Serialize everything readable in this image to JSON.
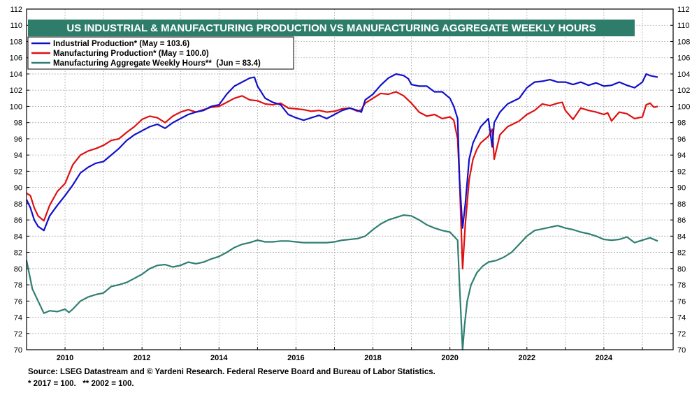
{
  "colors": {
    "title_bg": "#2e7d6b",
    "industrial": "#1010cc",
    "manufacturing": "#e01010",
    "hours": "#2f7f72",
    "grid": "#b0b0b0"
  },
  "footnotes": {
    "source": "Source: LSEG Datastream and © Yardeni Research. Federal Reserve Board and Bureau of Labor Statistics.",
    "notes": "* 2017 = 100.   ** 2002 = 100."
  },
  "chart_data": {
    "type": "line",
    "title": "US INDUSTRIAL & MANUFACTURING PRODUCTION VS MANUFACTURING AGGREGATE WEEKLY HOURS",
    "ylim": [
      70,
      112
    ],
    "y_ticks": [
      70,
      72,
      74,
      76,
      78,
      80,
      82,
      84,
      86,
      88,
      90,
      92,
      94,
      96,
      98,
      100,
      102,
      104,
      106,
      108,
      110,
      112
    ],
    "y_ticks_right": [
      70,
      72,
      74,
      76,
      78,
      80,
      82,
      84,
      86,
      88,
      90,
      92,
      94,
      96,
      98,
      100,
      102,
      104,
      106,
      108,
      110,
      112
    ],
    "xlim": [
      2009.0,
      2025.8
    ],
    "x_ticks": [
      2010,
      2012,
      2014,
      2016,
      2018,
      2020,
      2022,
      2024
    ],
    "grid": true,
    "legend": "top-left",
    "series": [
      {
        "name": "Industrial Production* (May = 103.6)",
        "key": "industrial",
        "x": [
          2009.0,
          2009.1,
          2009.2,
          2009.3,
          2009.45,
          2009.6,
          2009.8,
          2010.0,
          2010.2,
          2010.4,
          2010.6,
          2010.8,
          2011.0,
          2011.2,
          2011.4,
          2011.6,
          2011.8,
          2012.0,
          2012.2,
          2012.4,
          2012.6,
          2012.8,
          2013.0,
          2013.2,
          2013.4,
          2013.6,
          2013.8,
          2014.0,
          2014.2,
          2014.4,
          2014.6,
          2014.8,
          2014.92,
          2015.0,
          2015.2,
          2015.4,
          2015.6,
          2015.8,
          2016.0,
          2016.2,
          2016.4,
          2016.6,
          2016.8,
          2017.0,
          2017.2,
          2017.4,
          2017.6,
          2017.7,
          2017.8,
          2018.0,
          2018.2,
          2018.4,
          2018.6,
          2018.8,
          2018.92,
          2019.0,
          2019.2,
          2019.4,
          2019.6,
          2019.8,
          2020.0,
          2020.1,
          2020.2,
          2020.25,
          2020.33,
          2020.4,
          2020.5,
          2020.6,
          2020.7,
          2020.8,
          2021.0,
          2021.1,
          2021.15,
          2021.3,
          2021.5,
          2021.8,
          2022.0,
          2022.2,
          2022.4,
          2022.6,
          2022.8,
          2023.0,
          2023.2,
          2023.4,
          2023.6,
          2023.8,
          2024.0,
          2024.2,
          2024.4,
          2024.6,
          2024.8,
          2025.0,
          2025.1,
          2025.2,
          2025.3,
          2025.4
        ],
        "values": [
          88.5,
          87.5,
          86.0,
          85.2,
          84.7,
          86.5,
          87.8,
          89.0,
          90.3,
          91.8,
          92.5,
          93.0,
          93.2,
          94.0,
          94.8,
          95.8,
          96.5,
          97.0,
          97.5,
          97.8,
          97.3,
          98.0,
          98.5,
          99.0,
          99.3,
          99.5,
          100.0,
          100.2,
          101.5,
          102.5,
          103.0,
          103.5,
          103.6,
          102.5,
          101.0,
          100.5,
          100.2,
          99.0,
          98.6,
          98.3,
          98.6,
          98.9,
          98.5,
          99.0,
          99.5,
          99.8,
          99.5,
          99.3,
          100.8,
          101.5,
          102.6,
          103.5,
          104.0,
          103.8,
          103.4,
          102.7,
          102.5,
          102.5,
          101.8,
          101.8,
          101.0,
          100.0,
          98.5,
          91.0,
          85.0,
          88.0,
          93.5,
          95.5,
          96.5,
          97.5,
          98.5,
          95.0,
          98.0,
          99.3,
          100.3,
          101.0,
          102.3,
          103.0,
          103.1,
          103.3,
          103.0,
          103.0,
          102.7,
          103.0,
          102.6,
          102.9,
          102.5,
          102.6,
          103.0,
          102.6,
          102.3,
          103.0,
          104.0,
          103.8,
          103.7,
          103.6
        ]
      },
      {
        "name": "Manufacturing Production* (May = 100.0)",
        "key": "manufacturing",
        "x": [
          2009.0,
          2009.1,
          2009.2,
          2009.3,
          2009.45,
          2009.6,
          2009.8,
          2010.0,
          2010.2,
          2010.4,
          2010.6,
          2010.8,
          2011.0,
          2011.2,
          2011.4,
          2011.6,
          2011.8,
          2012.0,
          2012.2,
          2012.4,
          2012.6,
          2012.8,
          2013.0,
          2013.2,
          2013.4,
          2013.6,
          2013.8,
          2014.0,
          2014.2,
          2014.4,
          2014.6,
          2014.8,
          2015.0,
          2015.2,
          2015.4,
          2015.6,
          2015.8,
          2016.0,
          2016.2,
          2016.4,
          2016.6,
          2016.8,
          2017.0,
          2017.2,
          2017.4,
          2017.6,
          2017.7,
          2017.8,
          2018.0,
          2018.2,
          2018.4,
          2018.6,
          2018.8,
          2019.0,
          2019.2,
          2019.4,
          2019.6,
          2019.8,
          2020.0,
          2020.1,
          2020.2,
          2020.25,
          2020.33,
          2020.4,
          2020.5,
          2020.6,
          2020.7,
          2020.8,
          2021.0,
          2021.1,
          2021.15,
          2021.3,
          2021.5,
          2021.8,
          2022.0,
          2022.2,
          2022.4,
          2022.6,
          2022.8,
          2022.92,
          2023.0,
          2023.2,
          2023.4,
          2023.6,
          2023.8,
          2024.0,
          2024.1,
          2024.2,
          2024.4,
          2024.6,
          2024.8,
          2025.0,
          2025.1,
          2025.2,
          2025.3,
          2025.4
        ],
        "values": [
          89.3,
          89.0,
          87.5,
          86.5,
          85.9,
          87.8,
          89.5,
          90.5,
          92.8,
          94.0,
          94.5,
          94.8,
          95.2,
          95.8,
          96.0,
          96.8,
          97.5,
          98.4,
          98.8,
          98.6,
          98.0,
          98.8,
          99.3,
          99.6,
          99.3,
          99.6,
          99.9,
          100.0,
          100.5,
          101.0,
          101.3,
          100.8,
          100.7,
          100.3,
          100.2,
          100.4,
          99.8,
          99.7,
          99.6,
          99.4,
          99.5,
          99.3,
          99.4,
          99.7,
          99.8,
          99.4,
          99.6,
          100.4,
          101.0,
          101.6,
          101.5,
          101.8,
          101.3,
          100.4,
          99.3,
          98.8,
          99.0,
          98.5,
          98.7,
          98.3,
          96.0,
          91.0,
          80.0,
          85.5,
          91.0,
          93.5,
          94.7,
          95.5,
          96.3,
          97.2,
          93.5,
          96.5,
          97.5,
          98.2,
          99.0,
          99.5,
          100.3,
          100.1,
          100.4,
          100.5,
          99.5,
          98.4,
          99.8,
          99.5,
          99.3,
          99.0,
          99.2,
          98.2,
          99.3,
          99.1,
          98.5,
          98.7,
          100.2,
          100.4,
          99.9,
          100.0
        ]
      },
      {
        "name": "Manufacturing Aggregate Weekly Hours**  (Jun = 83.4)",
        "key": "hours",
        "x": [
          2009.0,
          2009.15,
          2009.3,
          2009.45,
          2009.6,
          2009.8,
          2010.0,
          2010.1,
          2010.2,
          2010.4,
          2010.6,
          2010.8,
          2011.0,
          2011.2,
          2011.4,
          2011.6,
          2011.8,
          2012.0,
          2012.2,
          2012.4,
          2012.6,
          2012.8,
          2013.0,
          2013.2,
          2013.4,
          2013.6,
          2013.8,
          2014.0,
          2014.2,
          2014.4,
          2014.6,
          2014.8,
          2015.0,
          2015.2,
          2015.4,
          2015.6,
          2015.8,
          2016.0,
          2016.2,
          2016.4,
          2016.6,
          2016.8,
          2017.0,
          2017.2,
          2017.4,
          2017.6,
          2017.8,
          2018.0,
          2018.2,
          2018.4,
          2018.6,
          2018.8,
          2019.0,
          2019.2,
          2019.4,
          2019.6,
          2019.8,
          2020.0,
          2020.1,
          2020.2,
          2020.25,
          2020.33,
          2020.38,
          2020.45,
          2020.55,
          2020.7,
          2020.85,
          2021.0,
          2021.2,
          2021.4,
          2021.6,
          2021.8,
          2022.0,
          2022.2,
          2022.4,
          2022.6,
          2022.8,
          2023.0,
          2023.2,
          2023.4,
          2023.6,
          2023.8,
          2024.0,
          2024.2,
          2024.4,
          2024.6,
          2024.8,
          2025.0,
          2025.2,
          2025.4
        ],
        "values": [
          81.0,
          77.5,
          76.0,
          74.5,
          74.8,
          74.7,
          75.0,
          74.6,
          75.0,
          76.0,
          76.5,
          76.8,
          77.0,
          77.8,
          78.0,
          78.3,
          78.8,
          79.3,
          80.0,
          80.4,
          80.5,
          80.2,
          80.4,
          80.8,
          80.6,
          80.8,
          81.2,
          81.5,
          82.0,
          82.6,
          83.0,
          83.2,
          83.5,
          83.3,
          83.3,
          83.4,
          83.4,
          83.3,
          83.2,
          83.2,
          83.2,
          83.2,
          83.3,
          83.5,
          83.6,
          83.7,
          84.0,
          84.8,
          85.5,
          86.0,
          86.3,
          86.6,
          86.5,
          86.0,
          85.4,
          85.0,
          84.7,
          84.5,
          84.0,
          83.5,
          78.0,
          70.0,
          73.0,
          76.0,
          78.0,
          79.5,
          80.3,
          80.8,
          81.0,
          81.4,
          82.0,
          83.0,
          84.0,
          84.7,
          84.9,
          85.1,
          85.3,
          85.0,
          84.8,
          84.5,
          84.3,
          84.0,
          83.6,
          83.5,
          83.6,
          83.9,
          83.2,
          83.5,
          83.8,
          83.4
        ]
      }
    ]
  }
}
